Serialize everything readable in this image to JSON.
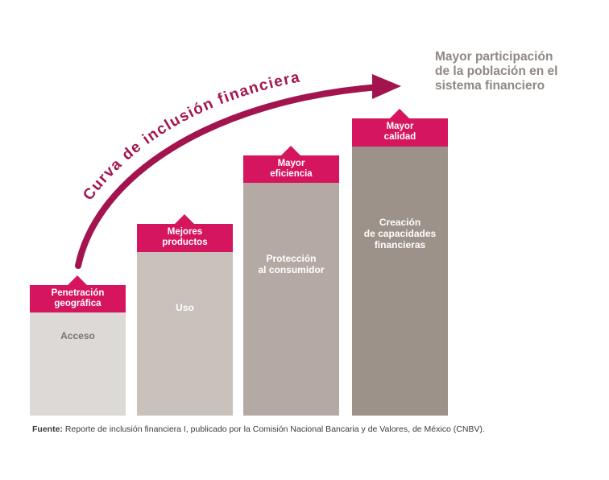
{
  "curve_label": "Curva de inclusión financiera",
  "goal": {
    "line1": "Mayor participación",
    "line2": "de la población en el",
    "line3": "sistema financiero"
  },
  "steps": [
    {
      "cap_line1": "Penetración",
      "cap_line2": "geográfica",
      "bar_label_line1": "Acceso",
      "bar_label_line2": ""
    },
    {
      "cap_line1": "Mejores",
      "cap_line2": "productos",
      "bar_label_line1": "Uso",
      "bar_label_line2": ""
    },
    {
      "cap_line1": "Mayor",
      "cap_line2": "eficiencia",
      "bar_label_line1": "Protección",
      "bar_label_line2": "al consumidor"
    },
    {
      "cap_line1": "Mayor",
      "cap_line2": "calidad",
      "bar_label_line1": "Creación",
      "bar_label_line2": "de capacidades",
      "bar_label_line3": "financieras"
    }
  ],
  "source": {
    "prefix": "Fuente:",
    "text": " Reporte de inclusión financiera I, publicado por la Comisión Nacional Bancaria y de Valores, de México (CNBV)."
  },
  "colors": {
    "accent": "#d6155f",
    "curve": "#a3144f",
    "bar1": "#dcd9d6",
    "bar2": "#c9c1bc",
    "bar3": "#b5aaa3",
    "bar4": "#9d928a"
  }
}
